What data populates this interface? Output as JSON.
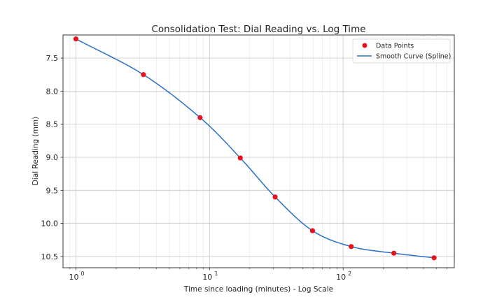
{
  "chart_data": {
    "type": "line",
    "title": "Consolidation Test: Dial Reading vs. Log Time",
    "xlabel": "Time since loading (minutes) - Log Scale",
    "ylabel": "Dial Reading (mm)",
    "x_scale": "log",
    "y_inverted": true,
    "xlim": [
      0.8,
      680
    ],
    "ylim": [
      7.15,
      10.67
    ],
    "grid": true,
    "legend_position": "top-right",
    "x_ticks": [
      {
        "base": "10",
        "exp": "0",
        "value": 1
      },
      {
        "base": "10",
        "exp": "1",
        "value": 10
      },
      {
        "base": "10",
        "exp": "2",
        "value": 100
      }
    ],
    "y_ticks": [
      "7.5",
      "8.0",
      "8.5",
      "9.0",
      "9.5",
      "10.0",
      "10.5"
    ],
    "series": [
      {
        "name": "Data Points",
        "kind": "scatter",
        "color": "#e8121c",
        "x": [
          1.0,
          3.2,
          8.5,
          17,
          31,
          59,
          115,
          240,
          480
        ],
        "y": [
          7.21,
          7.75,
          8.4,
          9.01,
          9.6,
          10.11,
          10.35,
          10.45,
          10.52
        ]
      },
      {
        "name": "Smooth Curve (Spline)",
        "kind": "line",
        "color": "#2870c8"
      }
    ]
  }
}
